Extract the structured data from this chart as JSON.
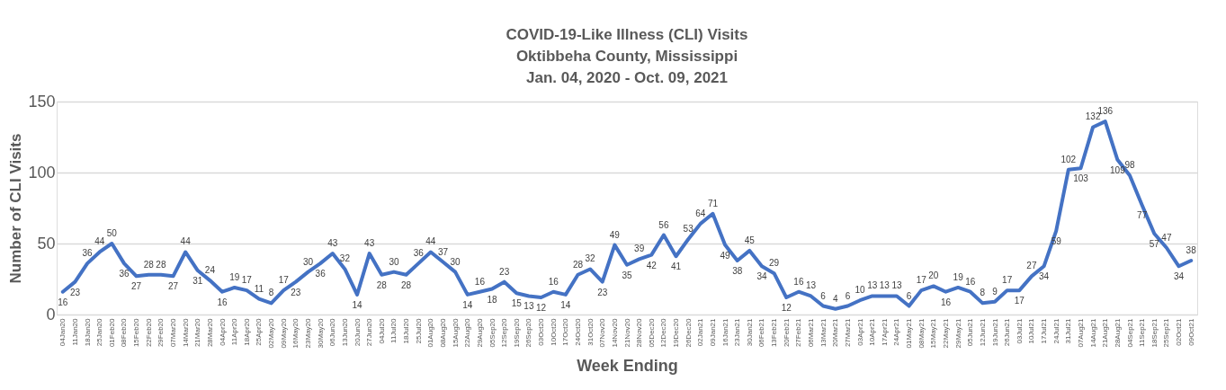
{
  "chart_data": {
    "type": "line",
    "title": "COVID-19-Like Illness (CLI) Visits\nOktibbeha County, Mississippi\nJan. 04, 2020 - Oct. 09, 2021",
    "xlabel": "Week Ending",
    "ylabel": "Number of CLI Visits",
    "categories": [
      "04Jan20",
      "11Jan20",
      "18Jan20",
      "25Jan20",
      "01Feb20",
      "08Feb20",
      "15Feb20",
      "22Feb20",
      "29Feb20",
      "07Mar20",
      "14Mar20",
      "21Mar20",
      "28Mar20",
      "04Apr20",
      "11Apr20",
      "18Apr20",
      "25Apr20",
      "02May20",
      "09May20",
      "16May20",
      "23May20",
      "30May20",
      "06Jun20",
      "13Jun20",
      "20Jun20",
      "27Jun20",
      "04Jul20",
      "11Jul20",
      "18Jul20",
      "25Jul20",
      "01Aug20",
      "08Aug20",
      "15Aug20",
      "22Aug20",
      "29Aug20",
      "05Sep20",
      "12Sep20",
      "19Sep20",
      "26Sep20",
      "03Oct20",
      "10Oct20",
      "17Oct20",
      "24Oct20",
      "31Oct20",
      "07Nov20",
      "14Nov20",
      "21Nov20",
      "28Nov20",
      "05Dec20",
      "12Dec20",
      "19Dec20",
      "26Dec20",
      "02Jan21",
      "09Jan21",
      "16Jan21",
      "23Jan21",
      "30Jan21",
      "06Feb21",
      "13Feb21",
      "20Feb21",
      "27Feb21",
      "06Mar21",
      "13Mar21",
      "20Mar21",
      "27Mar21",
      "03Apr21",
      "10Apr21",
      "17Apr21",
      "24Apr21",
      "01May21",
      "08May21",
      "15May21",
      "22May21",
      "29May21",
      "05Jun21",
      "12Jun21",
      "19Jun21",
      "26Jun21",
      "03Jul21",
      "10Jul21",
      "17Jul21",
      "24Jul21",
      "31Jul21",
      "07Aug21",
      "14Aug21",
      "21Aug21",
      "28Aug21",
      "04Sep21",
      "11Sep21",
      "18Sep21",
      "25Sep21",
      "02Oct21",
      "09Oct21"
    ],
    "series": [
      {
        "color": "#4472c4",
        "values": [
          16,
          23,
          36,
          44,
          50,
          36,
          27,
          28,
          28,
          27,
          44,
          31,
          24,
          16,
          19,
          17,
          11,
          8,
          17,
          23,
          30,
          36,
          43,
          32,
          14,
          43,
          28,
          30,
          28,
          36,
          44,
          37,
          30,
          14,
          16,
          18,
          23,
          15,
          13,
          12,
          16,
          14,
          28,
          32,
          23,
          49,
          35,
          39,
          42,
          56,
          41,
          53,
          64,
          71,
          49,
          38,
          45,
          34,
          29,
          12,
          16,
          13,
          6,
          4,
          6,
          10,
          13,
          13,
          13,
          6,
          17,
          20,
          16,
          19,
          16,
          8,
          9,
          17,
          17,
          27,
          34,
          59,
          102,
          103,
          132,
          136,
          109,
          98,
          77,
          57,
          47,
          34,
          38
        ]
      }
    ],
    "ylim": [
      0,
      150
    ],
    "yticks": [
      0,
      50,
      100,
      150
    ],
    "grid": "y",
    "data_labels": true,
    "marker": "none",
    "line_style": "solid",
    "legend": false
  }
}
